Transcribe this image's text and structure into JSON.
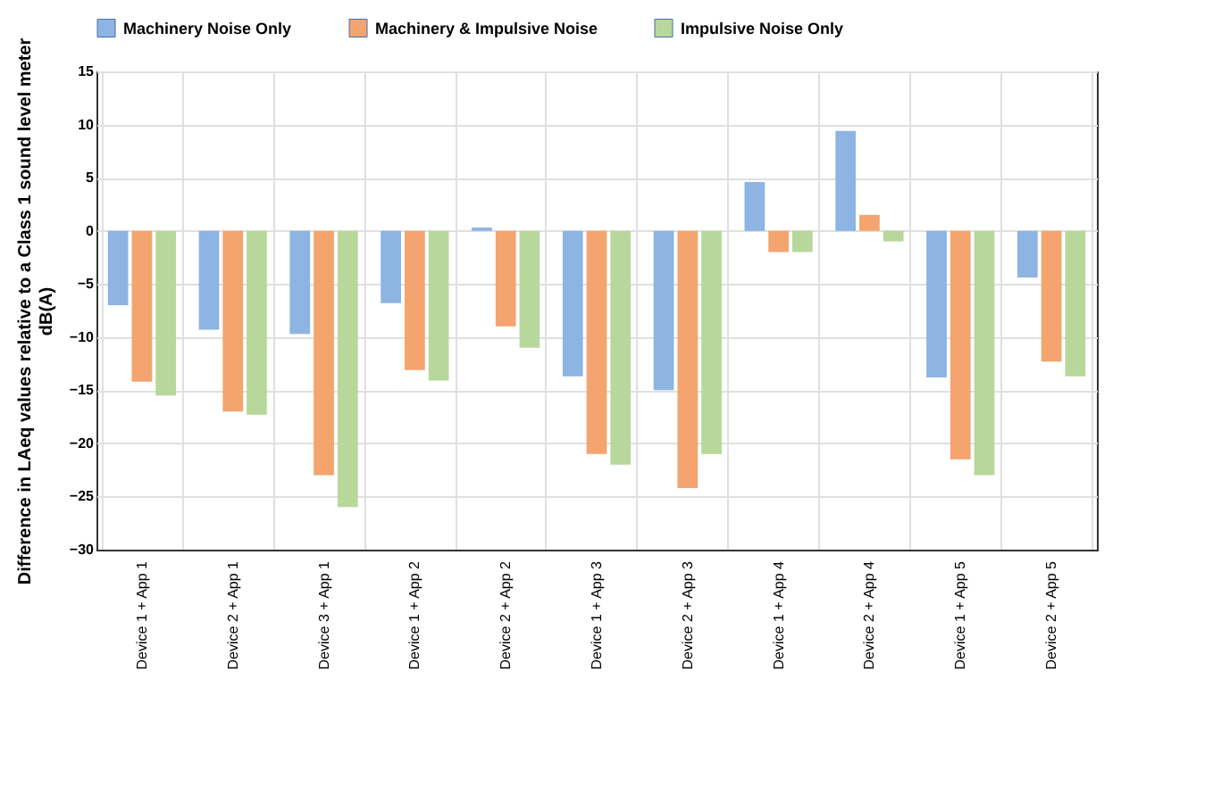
{
  "chart_data": {
    "type": "bar",
    "ylabel": "Difference in LAeq values relative to a Class 1 sound level meter dB(A)",
    "categories": [
      "Device 1 + App 1",
      "Device 2 + App 1",
      "Device 3 + App 1",
      "Device 1 + App 2",
      "Device 2 + App 2",
      "Device 1 + App 3",
      "Device 2 + App 3",
      "Device 1 + App 4",
      "Device 2 + App 4",
      "Device 1 + App 5",
      "Device 2 + App 5"
    ],
    "series": [
      {
        "name": "Machinery Noise Only",
        "color": "#8db4e2",
        "values": [
          -7,
          -9.3,
          -9.7,
          -6.8,
          0.3,
          -13.7,
          -15,
          4.6,
          9.4,
          -13.8,
          -4.4
        ]
      },
      {
        "name": "Machinery & Impulsive Noise",
        "color": "#f4a46e",
        "values": [
          -14.2,
          -17,
          -23,
          -13.1,
          -9,
          -21,
          -24.2,
          -2,
          1.5,
          -21.5,
          -12.3
        ]
      },
      {
        "name": "Impulsive Noise Only",
        "color": "#b8d89b",
        "values": [
          -15.5,
          -17.3,
          -26,
          -14.1,
          -11,
          -22,
          -21,
          -2,
          -1,
          -23,
          -13.7
        ]
      }
    ],
    "ylim": [
      -30,
      15
    ],
    "yticks": [
      -30,
      -25,
      -20,
      -15,
      -10,
      -5,
      0,
      5,
      10,
      15
    ],
    "grid": true,
    "legend": "top"
  }
}
